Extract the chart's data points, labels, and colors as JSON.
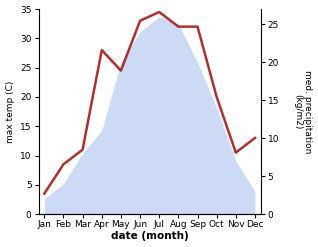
{
  "months": [
    "Jan",
    "Feb",
    "Mar",
    "Apr",
    "May",
    "Jun",
    "Jul",
    "Aug",
    "Sep",
    "Oct",
    "Nov",
    "Dec"
  ],
  "x": [
    0,
    1,
    2,
    3,
    4,
    5,
    6,
    7,
    8,
    9,
    10,
    11
  ],
  "temp": [
    3.5,
    8.5,
    11.0,
    28.0,
    24.5,
    33.0,
    34.5,
    32.0,
    32.0,
    20.0,
    10.5,
    13.0
  ],
  "precip": [
    2.0,
    4.0,
    8.0,
    11.0,
    20.0,
    24.0,
    26.0,
    25.0,
    20.0,
    14.0,
    7.0,
    3.0
  ],
  "temp_ylim": [
    0,
    35
  ],
  "precip_ylim": [
    0,
    27
  ],
  "temp_yticks": [
    0,
    5,
    10,
    15,
    20,
    25,
    30,
    35
  ],
  "precip_yticks": [
    0,
    5,
    10,
    15,
    20,
    25
  ],
  "fill_color": "#c5d4f5",
  "fill_alpha": 0.85,
  "line_color": "#b03030",
  "line_width": 1.8,
  "ylabel_left": "max temp (C)",
  "ylabel_right": "med. precipitation\n(kg/m2)",
  "xlabel": "date (month)",
  "background_color": "#ffffff",
  "fig_width": 3.18,
  "fig_height": 2.47,
  "dpi": 100
}
